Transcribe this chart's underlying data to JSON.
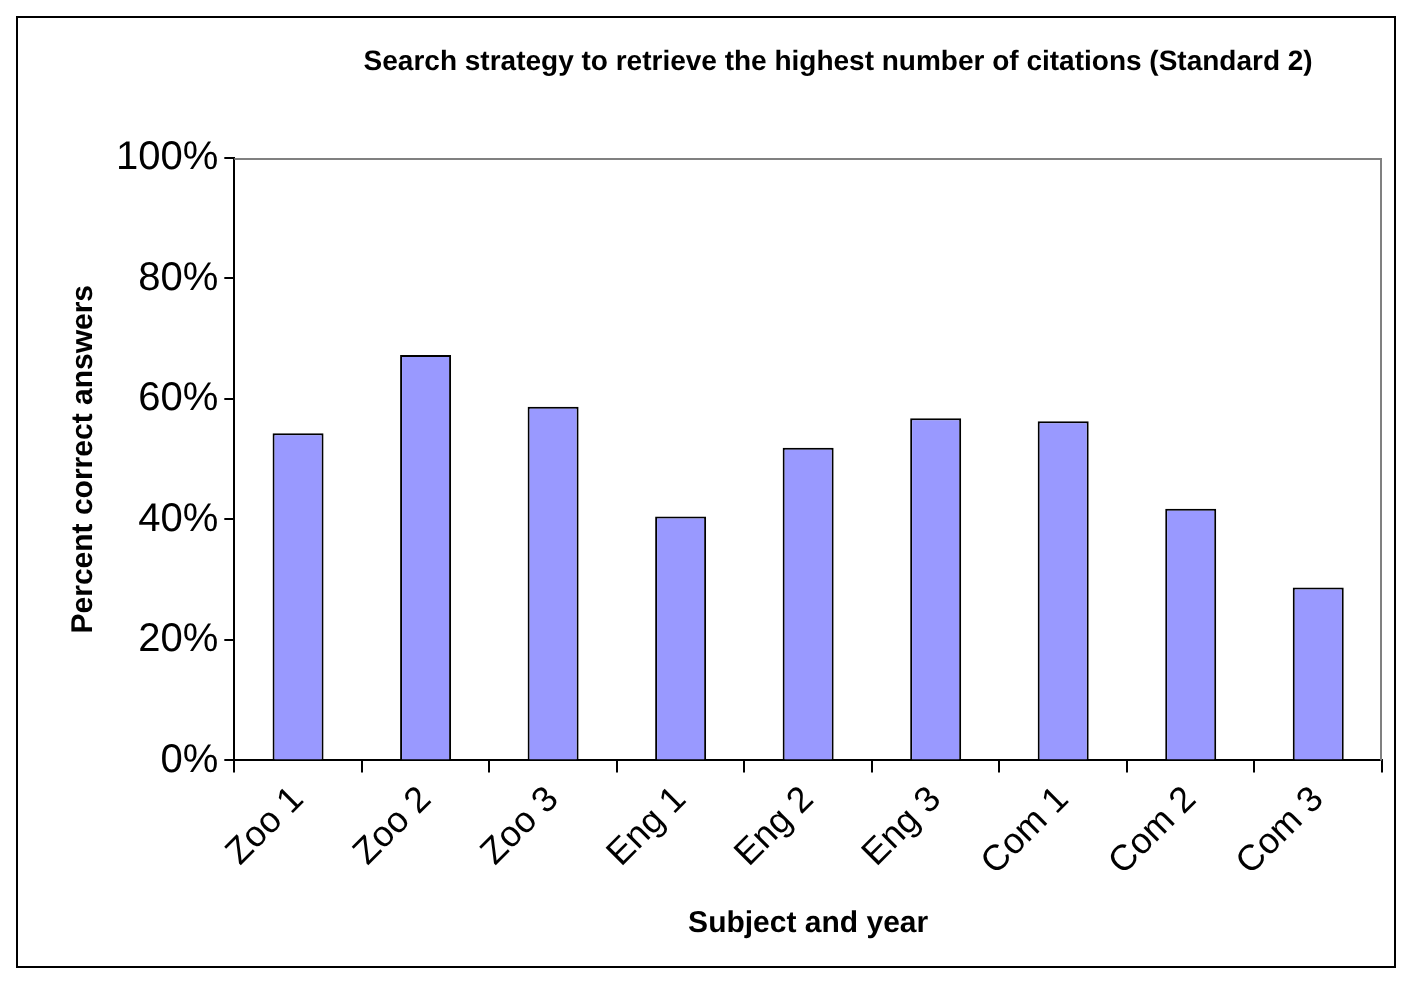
{
  "chart_data": {
    "type": "bar",
    "title": "Search strategy to retrieve the highest number of citations (Standard 2)",
    "xlabel": "Subject and year",
    "ylabel": "Percent correct answers",
    "categories": [
      "Zoo 1",
      "Zoo 2",
      "Zoo 3",
      "Eng 1",
      "Eng 2",
      "Eng 3",
      "Com 1",
      "Com 2",
      "Com 3"
    ],
    "values": [
      54.3,
      67.3,
      58.7,
      40.5,
      51.9,
      56.8,
      56.3,
      41.8,
      28.7
    ],
    "color": "#9999ff",
    "ylim": [
      0,
      100
    ],
    "yticks": [
      {
        "value": 0,
        "label": "0%"
      },
      {
        "value": 20,
        "label": "20%"
      },
      {
        "value": 40,
        "label": "40%"
      },
      {
        "value": 60,
        "label": "60%"
      },
      {
        "value": 80,
        "label": "80%"
      },
      {
        "value": 100,
        "label": "100%"
      }
    ],
    "grid": false,
    "legend": false
  }
}
